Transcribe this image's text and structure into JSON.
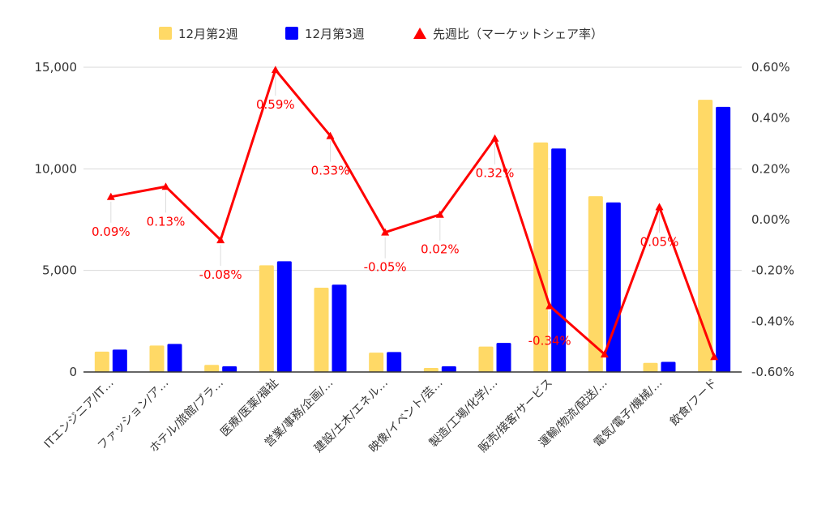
{
  "chart_data": {
    "type": "bar",
    "categories": [
      "ITエンジニア/IT…",
      "ファッション/ア…",
      "ホテル/旅館/ブラ…",
      "医療/医薬/福祉",
      "営業/事務/企画/…",
      "建設/土木/エネル…",
      "映像/イベント/芸…",
      "製造/工場/化学/…",
      "販売/接客/サービス",
      "運輸/物流/配送/…",
      "電気/電子/機械/…",
      "飲食/フード"
    ],
    "series": [
      {
        "name": "12月第2週",
        "kind": "bar",
        "axis": "left",
        "color": "#ffd966",
        "values": [
          1000,
          1300,
          350,
          5250,
          4150,
          950,
          200,
          1250,
          11300,
          8650,
          450,
          13400
        ]
      },
      {
        "name": "12月第3週",
        "kind": "bar",
        "axis": "left",
        "color": "#0000ff",
        "values": [
          1100,
          1380,
          280,
          5450,
          4300,
          980,
          280,
          1430,
          11000,
          8350,
          500,
          13050
        ]
      },
      {
        "name": "先週比（マーケットシェア率）",
        "kind": "line",
        "axis": "right",
        "color": "#ff0000",
        "values": [
          0.09,
          0.13,
          -0.08,
          0.59,
          0.33,
          -0.05,
          0.02,
          0.32,
          -0.34,
          -0.53,
          0.05,
          -0.54
        ],
        "labels": [
          "0.09%",
          "0.13%",
          "-0.08%",
          "0.59%",
          "0.33%",
          "-0.05%",
          "0.02%",
          "0.32%",
          "-0.34%",
          "",
          "0.05%",
          ""
        ]
      }
    ],
    "y_left": {
      "min": 0,
      "max": 15000,
      "ticks": [
        0,
        5000,
        10000,
        15000
      ],
      "tick_labels": [
        "0",
        "5,000",
        "10,000",
        "15,000"
      ]
    },
    "y_right": {
      "min": -0.6,
      "max": 0.6,
      "ticks": [
        -0.6,
        -0.4,
        -0.2,
        0,
        0.2,
        0.4,
        0.6
      ],
      "tick_labels": [
        "-0.60%",
        "-0.40%",
        "-0.20%",
        "0.00%",
        "0.20%",
        "0.40%",
        "0.60%"
      ]
    },
    "legend_position": "top",
    "grid": true
  }
}
